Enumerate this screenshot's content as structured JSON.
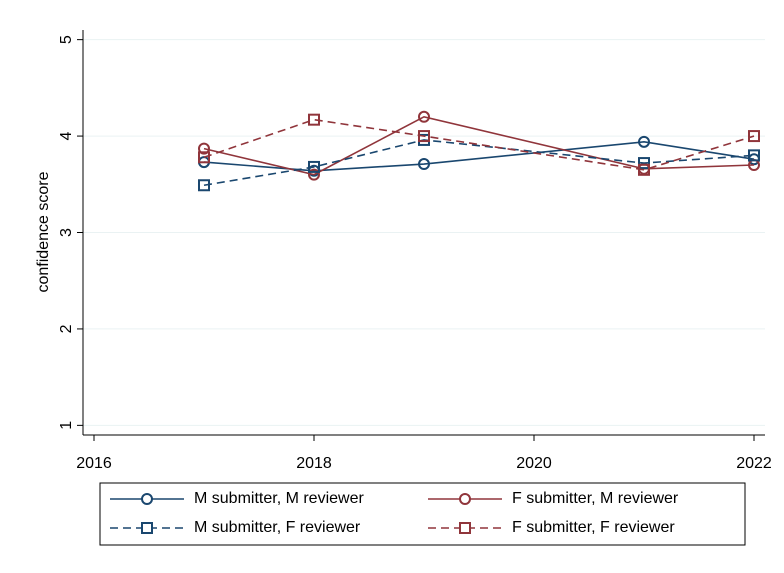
{
  "chart_data": {
    "type": "line",
    "y_label": "confidence score",
    "x": [
      2017,
      2018,
      2019,
      2021,
      2022
    ],
    "xlim": [
      2015.9,
      2022.1
    ],
    "xticks": [
      2016,
      2018,
      2020,
      2022
    ],
    "ylim": [
      0.9,
      5.1
    ],
    "yticks": [
      1,
      2,
      3,
      4,
      5
    ],
    "grid": true,
    "legend": "bottom",
    "series": [
      {
        "name": "M submitter, M reviewer",
        "color": "#1a476f",
        "dashed": false,
        "marker": "circle",
        "values": [
          3.73,
          3.64,
          3.71,
          3.94,
          3.76
        ]
      },
      {
        "name": "F submitter, M reviewer",
        "color": "#90353b",
        "dashed": false,
        "marker": "circle",
        "values": [
          3.87,
          3.6,
          4.2,
          3.66,
          3.7
        ]
      },
      {
        "name": "M submitter, F reviewer",
        "color": "#1a476f",
        "dashed": true,
        "marker": "square",
        "values": [
          3.49,
          3.68,
          3.96,
          3.72,
          3.8
        ]
      },
      {
        "name": "F submitter, F reviewer",
        "color": "#90353b",
        "dashed": true,
        "marker": "square",
        "values": [
          3.78,
          4.17,
          4.0,
          3.65,
          4.0
        ]
      }
    ]
  }
}
